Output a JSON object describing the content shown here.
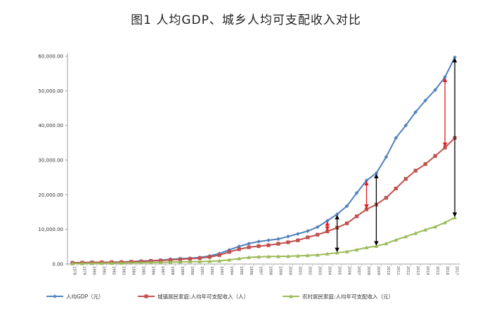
{
  "title": "图1 人均GDP、城乡人均可支配收入对比",
  "chart_data": {
    "type": "line",
    "title": "图1 人均GDP、城乡人均可支配收入对比",
    "xlabel": "",
    "ylabel": "",
    "ylim": [
      0,
      60000
    ],
    "yticks": [
      "0.00",
      "10,000.00",
      "20,000.00",
      "30,000.00",
      "40,000.00",
      "50,000.00",
      "60,000.00"
    ],
    "grid": false,
    "legend_position": "bottom",
    "x": [
      "1978",
      "1979",
      "1980",
      "1981",
      "1982",
      "1983",
      "1984",
      "1985",
      "1986",
      "1987",
      "1988",
      "1989",
      "1990",
      "1991",
      "1992",
      "1993",
      "1994",
      "1995",
      "1996",
      "1997",
      "1998",
      "1999",
      "2000",
      "2001",
      "2002",
      "2003",
      "2004",
      "2005",
      "2006",
      "2007",
      "2008",
      "2009",
      "2010",
      "2011",
      "2012",
      "2013",
      "2014",
      "2015",
      "2016",
      "2017"
    ],
    "series": [
      {
        "name": "人均GDP（元）",
        "color": "#4f81bd",
        "marker": "diamond",
        "values": [
          385,
          423,
          468,
          497,
          533,
          588,
          702,
          866,
          973,
          1123,
          1378,
          1536,
          1663,
          1912,
          2334,
          3027,
          4081,
          5091,
          5898,
          6481,
          6860,
          7229,
          7942,
          8717,
          9506,
          10666,
          12487,
          14368,
          16738,
          20505,
          24121,
          26222,
          30876,
          36403,
          40007,
          43852,
          47203,
          50251,
          53980,
          59660
        ]
      },
      {
        "name": "城镇居民家庭:人均年可支配收入（人）",
        "color": "#c0504d",
        "marker": "square",
        "values": [
          343,
          405,
          478,
          500,
          535,
          565,
          652,
          739,
          900,
          1002,
          1180,
          1374,
          1510,
          1701,
          2027,
          2577,
          3496,
          4283,
          4839,
          5160,
          5425,
          5854,
          6280,
          6860,
          7703,
          8472,
          9422,
          10493,
          11759,
          13786,
          15781,
          17175,
          19109,
          21810,
          24565,
          26955,
          28844,
          31195,
          33616,
          36396
        ]
      },
      {
        "name": "农村居民家庭:人均年可支配收入（元）",
        "color": "#9bbb59",
        "marker": "triangle",
        "values": [
          134,
          160,
          191,
          223,
          270,
          310,
          355,
          398,
          424,
          463,
          545,
          602,
          686,
          709,
          784,
          922,
          1221,
          1578,
          1926,
          2090,
          2162,
          2210,
          2253,
          2366,
          2476,
          2622,
          2936,
          3255,
          3587,
          4140,
          4761,
          5153,
          5919,
          6977,
          7917,
          8896,
          9892,
          10772,
          11969,
          13432
        ]
      }
    ],
    "annotations": [
      {
        "type": "double-arrow",
        "color": "#000000",
        "x": "2005",
        "from_series": "农村居民家庭:人均年可支配收入（元）",
        "to_series": "人均GDP（元）"
      },
      {
        "type": "double-arrow",
        "color": "#000000",
        "x": "2009",
        "from_series": "农村居民家庭:人均年可支配收入（元）",
        "to_series": "人均GDP（元）"
      },
      {
        "type": "double-arrow",
        "color": "#000000",
        "x": "2017",
        "from_series": "农村居民家庭:人均年可支配收入（元）",
        "to_series": "人均GDP（元）"
      },
      {
        "type": "double-arrow",
        "color": "#e41a1c",
        "x": "2004",
        "from_series": "城镇居民家庭:人均年可支配收入（人）",
        "to_series": "人均GDP（元）"
      },
      {
        "type": "double-arrow",
        "color": "#e41a1c",
        "x": "2008",
        "from_series": "城镇居民家庭:人均年可支配收入（人）",
        "to_series": "人均GDP（元）"
      },
      {
        "type": "double-arrow",
        "color": "#e41a1c",
        "x": "2016",
        "from_series": "城镇居民家庭:人均年可支配收入（人）",
        "to_series": "人均GDP（元）"
      }
    ]
  }
}
